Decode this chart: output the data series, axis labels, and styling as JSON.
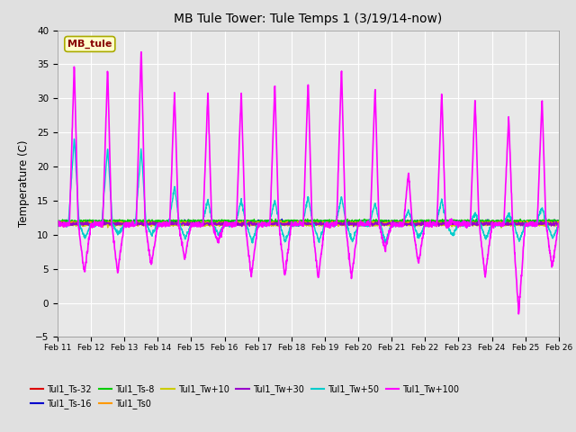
{
  "title": "MB Tule Tower: Tule Temps 1 (3/19/14-now)",
  "ylabel": "Temperature (C)",
  "xlim_start": 11,
  "xlim_end": 26,
  "ylim": [
    -5,
    40
  ],
  "yticks": [
    -5,
    0,
    5,
    10,
    15,
    20,
    25,
    30,
    35,
    40
  ],
  "xtick_labels": [
    "Feb 11",
    "Feb 12",
    "Feb 13",
    "Feb 14",
    "Feb 15",
    "Feb 16",
    "Feb 17",
    "Feb 18",
    "Feb 19",
    "Feb 20",
    "Feb 21",
    "Feb 22",
    "Feb 23",
    "Feb 24",
    "Feb 25",
    "Feb 26"
  ],
  "fig_bg_color": "#e0e0e0",
  "plot_bg_color": "#e8e8e8",
  "legend_box_color": "#ffffcc",
  "legend_box_edge": "#aaaa00",
  "legend_text_color": "#880000",
  "legend_station": "MB_tule",
  "series": [
    {
      "label": "Tul1_Ts-32",
      "color": "#dd0000"
    },
    {
      "label": "Tul1_Ts-16",
      "color": "#0000cc"
    },
    {
      "label": "Tul1_Ts-8",
      "color": "#00cc00"
    },
    {
      "label": "Tul1_Ts0",
      "color": "#ff9900"
    },
    {
      "label": "Tul1_Tw+10",
      "color": "#cccc00"
    },
    {
      "label": "Tul1_Tw+30",
      "color": "#9900cc"
    },
    {
      "label": "Tul1_Tw+50",
      "color": "#00cccc"
    },
    {
      "label": "Tul1_Tw+100",
      "color": "#ff00ff"
    }
  ]
}
